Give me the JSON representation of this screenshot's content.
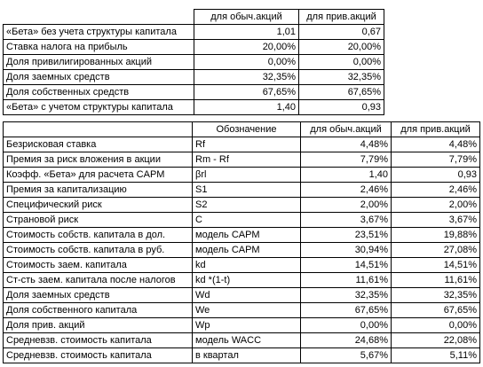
{
  "table1": {
    "header": [
      "для обыч.акций",
      "для прив.акций"
    ],
    "rows": [
      [
        "«Бета» без учета структуры капитала",
        "1,01",
        "0,67"
      ],
      [
        "Ставка налога на прибыль",
        "20,00%",
        "20,00%"
      ],
      [
        "Доля привилигированных акций",
        "0,00%",
        "0,00%"
      ],
      [
        "Доля заемных средств",
        "32,35%",
        "32,35%"
      ],
      [
        "Доля собственных средств",
        "67,65%",
        "67,65%"
      ],
      [
        "«Бета» с учетом структуры капитала",
        "1,40",
        "0,93"
      ]
    ]
  },
  "table2": {
    "header": [
      "Обозначение",
      "для обыч.акций",
      "для прив.акций"
    ],
    "rows": [
      [
        "Безрисковая ставка",
        "Rf",
        "4,48%",
        "4,48%"
      ],
      [
        "Премия за риск вложения в акции",
        "Rm - Rf",
        "7,79%",
        "7,79%"
      ],
      [
        "Коэфф. «Бета» для расчета CAPM",
        "βrl",
        "1,40",
        "0,93"
      ],
      [
        "Премия за капитализацию",
        "S1",
        "2,46%",
        "2,46%"
      ],
      [
        "Специфический риск",
        "S2",
        "2,00%",
        "2,00%"
      ],
      [
        "Страновой риск",
        "C",
        "3,67%",
        "3,67%"
      ],
      [
        "Стоимость собств. капитала в дол.",
        "модель CAPM",
        "23,51%",
        "19,88%"
      ],
      [
        "Стоимость собств. капитала в руб.",
        "модель CAPM",
        "30,94%",
        "27,08%"
      ],
      [
        "Стоимость заем. капитала",
        "kd",
        "14,51%",
        "14,51%"
      ],
      [
        "Ст-сть заем. капитала после налогов",
        "kd *(1-t)",
        "11,61%",
        "11,61%"
      ],
      [
        "Доля заемных средств",
        "Wd",
        "32,35%",
        "32,35%"
      ],
      [
        "Доля собственного капитала",
        "We",
        "67,65%",
        "67,65%"
      ],
      [
        "Доля прив. акций",
        "Wp",
        "0,00%",
        "0,00%"
      ],
      [
        "Средневзв. стоимость капитала",
        "модель WACC",
        "24,68%",
        "22,08%"
      ],
      [
        "Средневзв. стоимость капитала",
        "в квартал",
        "5,67%",
        "5,11%"
      ]
    ]
  }
}
